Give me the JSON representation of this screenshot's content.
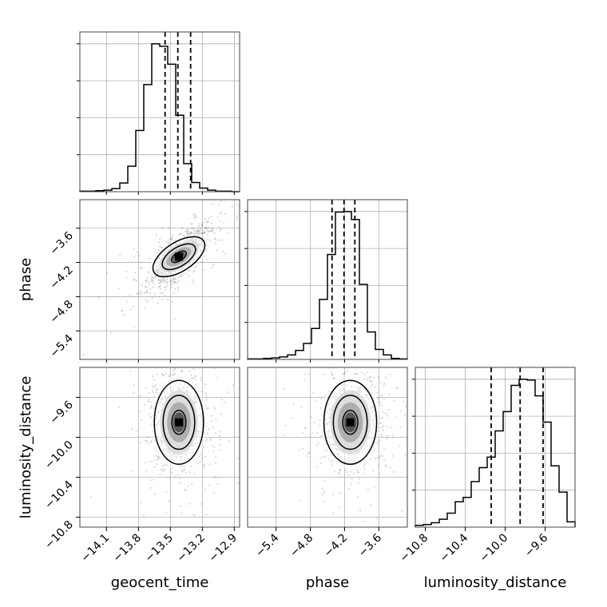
{
  "chart_data": {
    "type": "corner",
    "parameters": [
      "geocent_time",
      "phase",
      "luminosity_distance"
    ],
    "ranges": {
      "geocent_time": [
        -14.35,
        -12.85
      ],
      "phase": [
        -5.9,
        -3.1
      ],
      "luminosity_distance": [
        -10.9,
        -9.3
      ]
    },
    "ticks": {
      "geocent_time": [
        "-14.1",
        "-13.8",
        "-13.5",
        "-13.2",
        "-12.9"
      ],
      "phase": [
        "-5.4",
        "-4.8",
        "-4.2",
        "-3.6"
      ],
      "luminosity_distance": [
        "-10.8",
        "-10.4",
        "-10.0",
        "-9.6"
      ]
    },
    "tick_values": {
      "geocent_time": [
        -14.1,
        -13.8,
        -13.5,
        -13.2,
        -12.9
      ],
      "phase": [
        -5.4,
        -4.8,
        -4.2,
        -3.6
      ],
      "luminosity_distance": [
        -10.8,
        -10.4,
        -10.0,
        -9.6
      ]
    },
    "quantiles": {
      "geocent_time": [
        -13.55,
        -13.43,
        -13.31
      ],
      "phase": [
        -4.42,
        -4.21,
        -4.02
      ],
      "luminosity_distance": [
        -10.14,
        -9.85,
        -9.62
      ]
    },
    "histograms": {
      "geocent_time": [
        1,
        1,
        2,
        3,
        6,
        17,
        50,
        120,
        210,
        290,
        285,
        250,
        150,
        55,
        18,
        7,
        3,
        1,
        1,
        0
      ],
      "phase": [
        1,
        1,
        2,
        3,
        5,
        9,
        18,
        32,
        62,
        120,
        210,
        295,
        296,
        280,
        150,
        55,
        20,
        9,
        2,
        1
      ],
      "luminosity_distance": [
        2,
        3,
        5,
        9,
        16,
        29,
        34,
        52,
        68,
        80,
        110,
        132,
        162,
        169,
        168,
        150,
        120,
        70,
        40,
        6
      ]
    },
    "joint_centers": {
      "phase_vs_geocent_time": [
        -13.42,
        -4.1
      ],
      "luminosity_distance_vs_geocent_time": [
        -13.42,
        -9.85
      ],
      "luminosity_distance_vs_phase": [
        -4.1,
        -9.85
      ]
    },
    "grid": true
  }
}
